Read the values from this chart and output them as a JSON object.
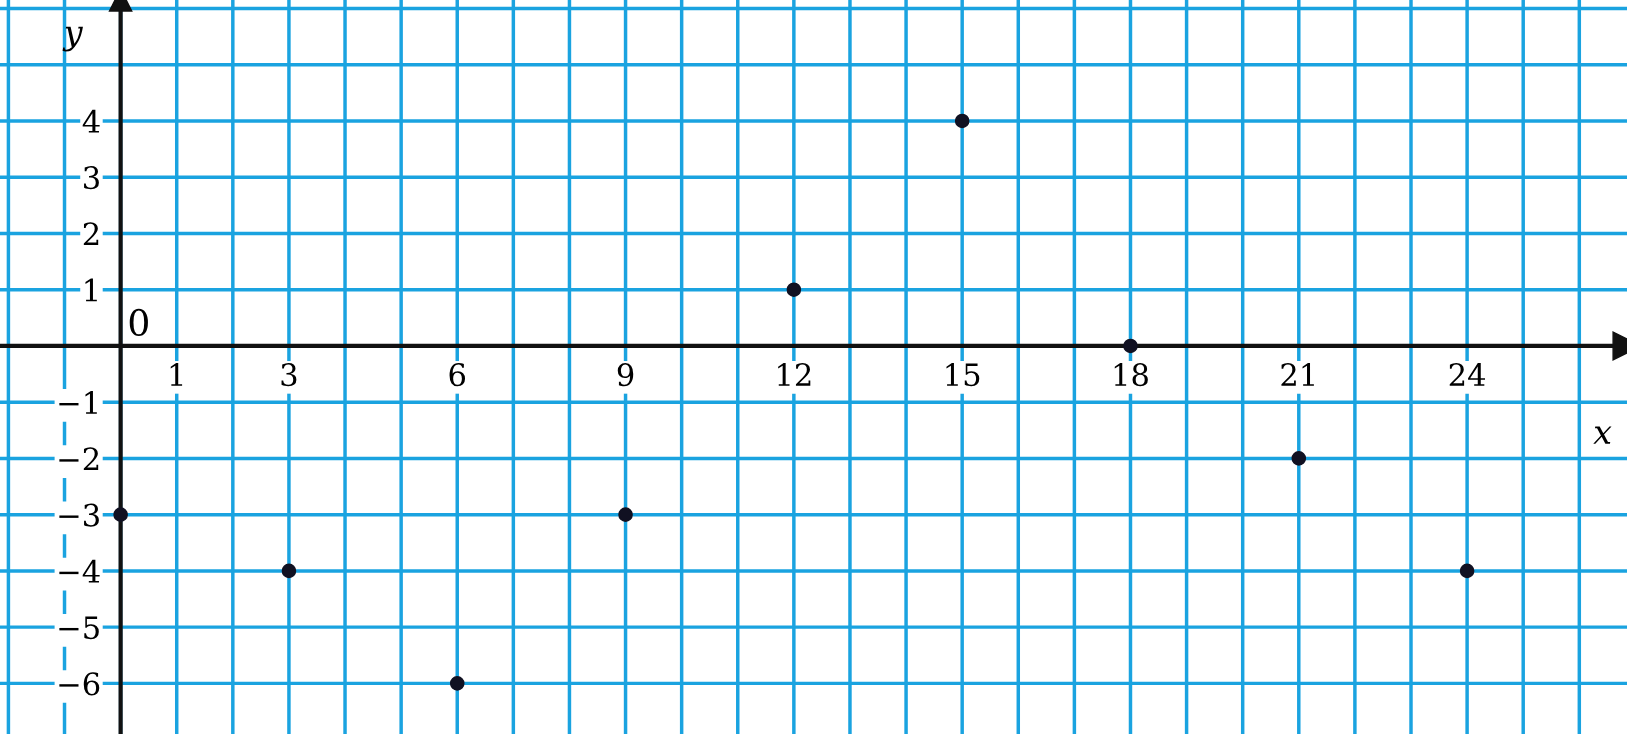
{
  "chart_data": {
    "type": "scatter",
    "xlabel": "x",
    "ylabel": "y",
    "x": [
      0,
      3,
      6,
      9,
      12,
      15,
      18,
      21,
      24
    ],
    "series": [
      {
        "color": "#111122",
        "values": [
          -3,
          -4,
          -6,
          -3,
          1,
          4,
          0,
          -2,
          -4
        ]
      }
    ],
    "marker": "circle",
    "grid": true,
    "xlim": [
      -2.15,
      26.85
    ],
    "ylim": [
      -6.9,
      6.15
    ],
    "xticks": [
      {
        "value": -2,
        "label": null
      },
      {
        "value": -1,
        "label": null
      },
      {
        "value": 0,
        "label": null
      },
      1,
      {
        "value": 2,
        "label": null
      },
      3,
      {
        "value": 4,
        "label": null
      },
      {
        "value": 5,
        "label": null
      },
      6,
      {
        "value": 7,
        "label": null
      },
      {
        "value": 8,
        "label": null
      },
      9,
      {
        "value": 10,
        "label": null
      },
      {
        "value": 11,
        "label": null
      },
      12,
      {
        "value": 13,
        "label": null
      },
      {
        "value": 14,
        "label": null
      },
      15,
      {
        "value": 16,
        "label": null
      },
      {
        "value": 17,
        "label": null
      },
      18,
      {
        "value": 19,
        "label": null
      },
      {
        "value": 20,
        "label": null
      },
      21,
      {
        "value": 22,
        "label": null
      },
      {
        "value": 23,
        "label": null
      },
      24,
      {
        "value": 25,
        "label": null
      },
      {
        "value": 26,
        "label": null
      }
    ],
    "yticks": [
      {
        "value": -6,
        "label": "−6"
      },
      {
        "value": -5,
        "label": "−5"
      },
      {
        "value": -4,
        "label": "−4"
      },
      {
        "value": -3,
        "label": "−3"
      },
      {
        "value": -2,
        "label": "−2"
      },
      {
        "value": -1,
        "label": "−1"
      },
      {
        "value": 0,
        "label": null
      },
      1,
      2,
      3,
      4,
      {
        "value": 5,
        "label": null
      },
      {
        "value": 6,
        "label": null
      }
    ],
    "annotations": [
      "0"
    ]
  }
}
